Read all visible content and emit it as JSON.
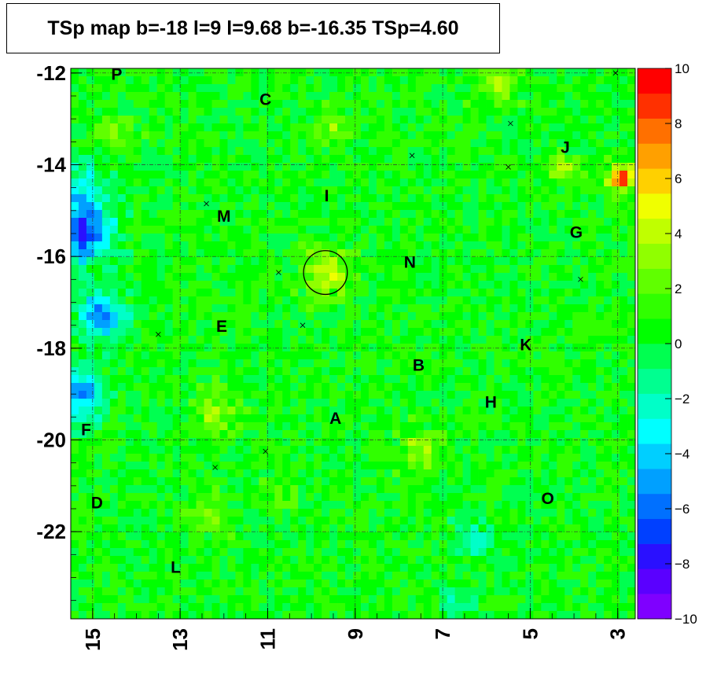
{
  "title": "TSp map b=-18 l=9 l=9.68 b=-16.35 TSp=4.60",
  "chart_data": {
    "type": "heatmap",
    "title": "TSp map b=-18 l=9 l=9.68 b=-16.35 TSp=4.60",
    "xlabel": "",
    "ylabel": "",
    "x_axis": {
      "reversed": true,
      "range": [
        15.5,
        2.6
      ],
      "tick_labels": [
        "15",
        "13",
        "11",
        "9",
        "7",
        "5",
        "3"
      ],
      "tick_values": [
        15,
        13,
        11,
        9,
        7,
        5,
        3
      ]
    },
    "y_axis": {
      "range": [
        -23.9,
        -11.9
      ],
      "tick_labels": [
        "-12",
        "-14",
        "-16",
        "-18",
        "-20",
        "-22"
      ],
      "tick_values": [
        -12,
        -14,
        -16,
        -18,
        -20,
        -22
      ]
    },
    "colorbar": {
      "range": [
        -10,
        10
      ],
      "tick_labels": [
        "10",
        "8",
        "6",
        "4",
        "2",
        "0",
        "−2",
        "−4",
        "−6",
        "−8",
        "−10"
      ],
      "tick_values": [
        10,
        8,
        6,
        4,
        2,
        0,
        -2,
        -4,
        -6,
        -8,
        -10
      ],
      "colors": [
        "#7f00ff",
        "#5a00ff",
        "#2a10ff",
        "#0040ff",
        "#0070ff",
        "#00a0ff",
        "#00cfff",
        "#00ffff",
        "#00ffc8",
        "#00ff90",
        "#00ff50",
        "#00ff00",
        "#30ff00",
        "#60ff00",
        "#90ff00",
        "#c0ff00",
        "#f0ff00",
        "#ffd000",
        "#ffa000",
        "#ff7000",
        "#ff3000",
        "#ff0000"
      ]
    },
    "background_value": 0.5,
    "hotspots": [
      {
        "l": 9.68,
        "b": -16.35,
        "value": 4.0,
        "radius": 0.35
      },
      {
        "l": 2.9,
        "b": -14.3,
        "value": 8.0,
        "radius": 0.2
      },
      {
        "l": 4.2,
        "b": -14.1,
        "value": 3.0,
        "radius": 0.25
      },
      {
        "l": 5.8,
        "b": -12.2,
        "value": 3.0,
        "radius": 0.3
      },
      {
        "l": 7.5,
        "b": -20.2,
        "value": 3.0,
        "radius": 0.3
      },
      {
        "l": 12.2,
        "b": -19.4,
        "value": 2.5,
        "radius": 0.35
      },
      {
        "l": 12.4,
        "b": -21.6,
        "value": 2.0,
        "radius": 0.3
      },
      {
        "l": 10.8,
        "b": -21.1,
        "value": 2.0,
        "radius": 0.25
      },
      {
        "l": 14.5,
        "b": -13.4,
        "value": 2.5,
        "radius": 0.25
      },
      {
        "l": 9.5,
        "b": -13.2,
        "value": 2.5,
        "radius": 0.25
      }
    ],
    "coldspots": [
      {
        "l": 15.2,
        "b": -15.5,
        "value": -7.0,
        "radius": 0.45
      },
      {
        "l": 14.8,
        "b": -17.3,
        "value": -6.0,
        "radius": 0.35
      },
      {
        "l": 15.3,
        "b": -19.2,
        "value": -3.5,
        "radius": 0.4
      },
      {
        "l": 15.3,
        "b": -14.5,
        "value": -3.0,
        "radius": 0.45
      },
      {
        "l": 15.2,
        "b": -18.8,
        "value": -3.0,
        "radius": 0.3
      },
      {
        "l": 6.3,
        "b": -22.2,
        "value": -2.0,
        "radius": 0.3
      },
      {
        "l": 6.6,
        "b": -23.5,
        "value": -2.0,
        "radius": 0.25
      }
    ],
    "circle": {
      "l": 9.68,
      "b": -16.35,
      "radius": 0.5
    },
    "labels": [
      {
        "text": "P",
        "l": 14.45,
        "b": -12.05
      },
      {
        "text": "C",
        "l": 11.05,
        "b": -12.6
      },
      {
        "text": "J",
        "l": 4.2,
        "b": -13.65
      },
      {
        "text": "I",
        "l": 9.65,
        "b": -14.7
      },
      {
        "text": "M",
        "l": 12.0,
        "b": -15.15
      },
      {
        "text": "G",
        "l": 3.95,
        "b": -15.5
      },
      {
        "text": "N",
        "l": 7.75,
        "b": -16.15
      },
      {
        "text": "E",
        "l": 12.05,
        "b": -17.55
      },
      {
        "text": "K",
        "l": 5.1,
        "b": -17.95
      },
      {
        "text": "B",
        "l": 7.55,
        "b": -18.4
      },
      {
        "text": "H",
        "l": 5.9,
        "b": -19.2
      },
      {
        "text": "A",
        "l": 9.45,
        "b": -19.55
      },
      {
        "text": "F",
        "l": 15.15,
        "b": -19.8
      },
      {
        "text": "D",
        "l": 14.9,
        "b": -21.4
      },
      {
        "text": "O",
        "l": 4.6,
        "b": -21.3
      },
      {
        "text": "L",
        "l": 13.1,
        "b": -22.8
      }
    ],
    "source_markers": [
      {
        "l": 3.05,
        "b": -12.0
      },
      {
        "l": 5.45,
        "b": -13.1
      },
      {
        "l": 7.7,
        "b": -13.8
      },
      {
        "l": 5.5,
        "b": -14.05
      },
      {
        "l": 12.4,
        "b": -14.85
      },
      {
        "l": 10.75,
        "b": -16.35
      },
      {
        "l": 3.85,
        "b": -16.5
      },
      {
        "l": 10.2,
        "b": -17.5
      },
      {
        "l": 13.5,
        "b": -17.7
      },
      {
        "l": 11.05,
        "b": -20.25
      },
      {
        "l": 12.2,
        "b": -20.6
      }
    ],
    "grid": true,
    "grid_lines_l": [
      15,
      13,
      11,
      9,
      7,
      5,
      3
    ],
    "grid_lines_b": [
      -12,
      -14,
      -16,
      -18,
      -20,
      -22
    ]
  }
}
